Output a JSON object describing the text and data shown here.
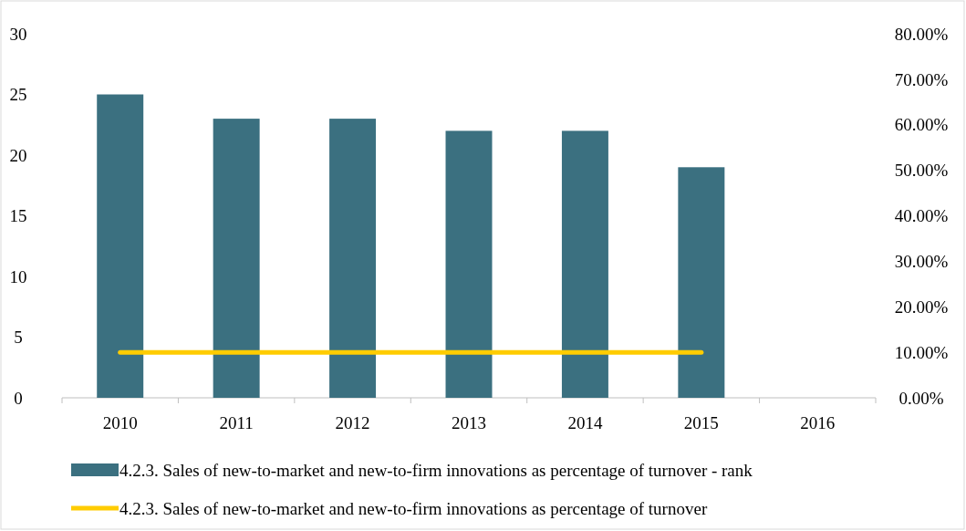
{
  "chart_data": {
    "type": "bar",
    "categories": [
      "2010",
      "2011",
      "2012",
      "2013",
      "2014",
      "2015",
      "2016"
    ],
    "series": [
      {
        "name": "4.2.3. Sales of new-to-market and new-to-firm innovations as percentage of turnover - rank",
        "color": "#3b7080",
        "values": [
          25,
          23,
          23,
          22,
          22,
          19,
          null
        ]
      },
      {
        "name": "4.2.3. Sales of new-to-market and new-to-firm innovations as percentage of turnover",
        "type": "line",
        "axis": "y2",
        "color": "#ffcc00",
        "values": [
          10,
          10,
          10,
          10,
          10,
          10,
          null
        ]
      }
    ],
    "ylim": [
      0,
      30
    ],
    "yticks": [
      0,
      5,
      10,
      15,
      20,
      25,
      30
    ],
    "y2lim": [
      0,
      80
    ],
    "y2ticks": [
      {
        "value": 0,
        "label": "0.00%"
      },
      {
        "value": 10,
        "label": "10.00%"
      },
      {
        "value": 20,
        "label": "20.00%"
      },
      {
        "value": 30,
        "label": "30.00%"
      },
      {
        "value": 40,
        "label": "40.00%"
      },
      {
        "value": 50,
        "label": "50.00%"
      },
      {
        "value": 60,
        "label": "60.00%"
      },
      {
        "value": 70,
        "label": "70.00%"
      },
      {
        "value": 80,
        "label": "80.00%"
      }
    ],
    "grid": false,
    "legend": "bottom",
    "marker": "none",
    "line_style": "solid"
  }
}
